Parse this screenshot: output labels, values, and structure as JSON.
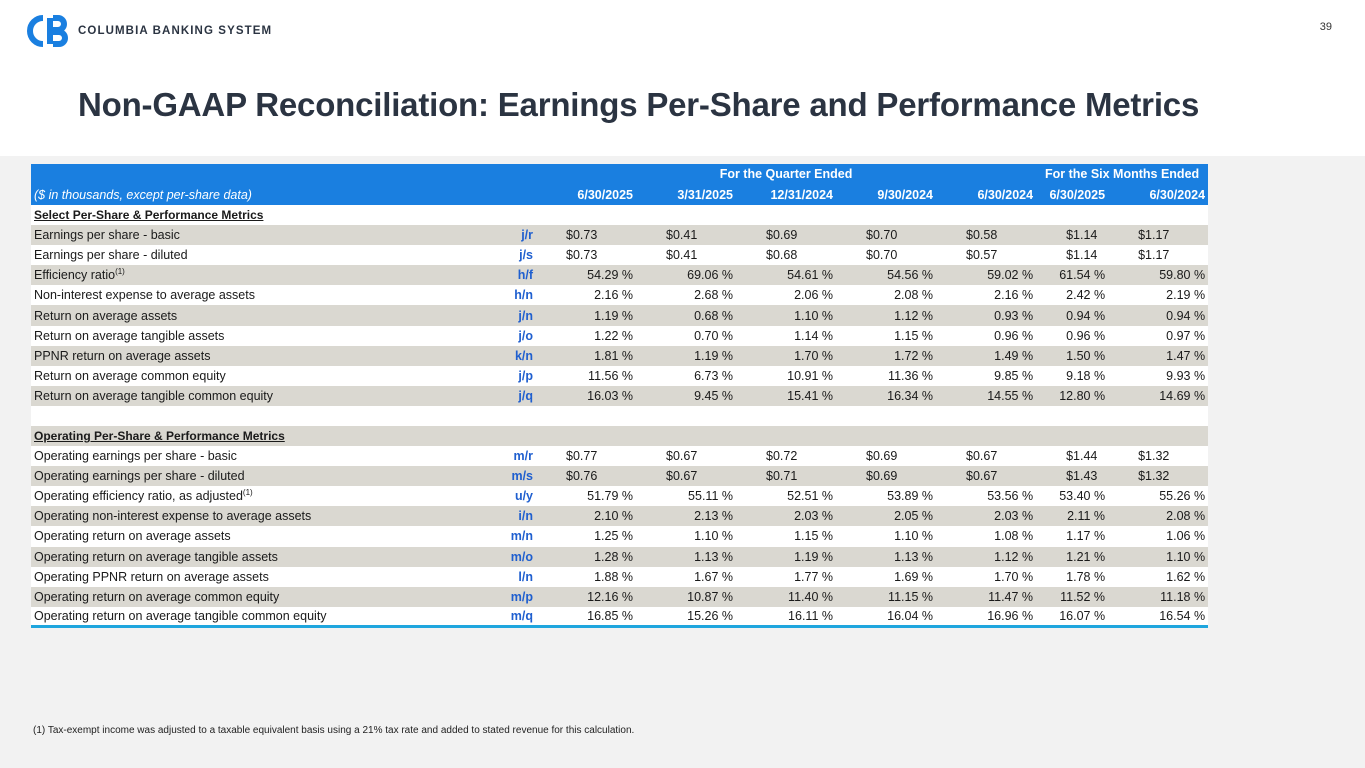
{
  "header": {
    "company": "COLUMBIA BANKING SYSTEM",
    "page_number": "39",
    "brand_color": "#1a7fe0",
    "logo_icon": "cb-logo-icon"
  },
  "title": "Non-GAAP Reconciliation: Earnings Per-Share and Performance Metrics",
  "table": {
    "group_quarter": "For the Quarter Ended",
    "group_six_months": "For the Six Months Ended",
    "units_label": "($ in thousands, except per-share data)",
    "columns": [
      "6/30/2025",
      "3/31/2025",
      "12/31/2024",
      "9/30/2024",
      "6/30/2024",
      "6/30/2025",
      "6/30/2024"
    ],
    "section1": {
      "title": "Select Per-Share & Performance Metrics",
      "rows": [
        {
          "label": "Earnings per share - basic",
          "sup": "",
          "code": "j/r",
          "values": [
            "$0.73",
            "$0.41",
            "$0.69",
            "$0.70",
            "$0.58",
            "$1.14",
            "$1.17"
          ]
        },
        {
          "label": "Earnings per share - diluted",
          "sup": "",
          "code": "j/s",
          "values": [
            "$0.73",
            "$0.41",
            "$0.68",
            "$0.70",
            "$0.57",
            "$1.14",
            "$1.17"
          ]
        },
        {
          "label": "Efficiency ratio",
          "sup": "(1)",
          "code": "h/f",
          "values": [
            "54.29 %",
            "69.06 %",
            "54.61 %",
            "54.56 %",
            "59.02 %",
            "61.54 %",
            "59.80 %"
          ]
        },
        {
          "label": "Non-interest expense to average assets",
          "sup": "",
          "code": "h/n",
          "values": [
            "2.16 %",
            "2.68 %",
            "2.06 %",
            "2.08 %",
            "2.16 %",
            "2.42 %",
            "2.19 %"
          ]
        },
        {
          "label": "Return on average assets",
          "sup": "",
          "code": "j/n",
          "values": [
            "1.19 %",
            "0.68 %",
            "1.10 %",
            "1.12 %",
            "0.93 %",
            "0.94 %",
            "0.94 %"
          ]
        },
        {
          "label": "Return on average tangible assets",
          "sup": "",
          "code": "j/o",
          "values": [
            "1.22 %",
            "0.70 %",
            "1.14 %",
            "1.15 %",
            "0.96 %",
            "0.96 %",
            "0.97 %"
          ]
        },
        {
          "label": "PPNR return on average assets",
          "sup": "",
          "code": "k/n",
          "values": [
            "1.81 %",
            "1.19 %",
            "1.70 %",
            "1.72 %",
            "1.49 %",
            "1.50 %",
            "1.47 %"
          ]
        },
        {
          "label": "Return on average common equity",
          "sup": "",
          "code": "j/p",
          "values": [
            "11.56 %",
            "6.73 %",
            "10.91 %",
            "11.36 %",
            "9.85 %",
            "9.18 %",
            "9.93 %"
          ]
        },
        {
          "label": "Return on average tangible common equity",
          "sup": "",
          "code": "j/q",
          "values": [
            "16.03 %",
            "9.45 %",
            "15.41 %",
            "16.34 %",
            "14.55 %",
            "12.80 %",
            "14.69 %"
          ]
        }
      ]
    },
    "section2": {
      "title": "Operating Per-Share & Performance Metrics",
      "rows": [
        {
          "label": "Operating earnings per share - basic",
          "sup": "",
          "code": "m/r",
          "values": [
            "$0.77",
            "$0.67",
            "$0.72",
            "$0.69",
            "$0.67",
            "$1.44",
            "$1.32"
          ]
        },
        {
          "label": "Operating earnings per share - diluted",
          "sup": "",
          "code": "m/s",
          "values": [
            "$0.76",
            "$0.67",
            "$0.71",
            "$0.69",
            "$0.67",
            "$1.43",
            "$1.32"
          ]
        },
        {
          "label": "Operating efficiency ratio, as adjusted",
          "sup": "(1)",
          "code": "u/y",
          "values": [
            "51.79 %",
            "55.11 %",
            "52.51 %",
            "53.89 %",
            "53.56 %",
            "53.40 %",
            "55.26 %"
          ]
        },
        {
          "label": "Operating non-interest expense to average assets",
          "sup": "",
          "code": "i/n",
          "values": [
            "2.10 %",
            "2.13 %",
            "2.03 %",
            "2.05 %",
            "2.03 %",
            "2.11 %",
            "2.08 %"
          ]
        },
        {
          "label": "Operating return on average assets",
          "sup": "",
          "code": "m/n",
          "values": [
            "1.25 %",
            "1.10 %",
            "1.15 %",
            "1.10 %",
            "1.08 %",
            "1.17 %",
            "1.06 %"
          ]
        },
        {
          "label": "Operating return on average tangible assets",
          "sup": "",
          "code": "m/o",
          "values": [
            "1.28 %",
            "1.13 %",
            "1.19 %",
            "1.13 %",
            "1.12 %",
            "1.21 %",
            "1.10 %"
          ]
        },
        {
          "label": "Operating PPNR return on average assets",
          "sup": "",
          "code": "l/n",
          "values": [
            "1.88 %",
            "1.67 %",
            "1.77 %",
            "1.69 %",
            "1.70 %",
            "1.78 %",
            "1.62 %"
          ]
        },
        {
          "label": "Operating return on average common equity",
          "sup": "",
          "code": "m/p",
          "values": [
            "12.16 %",
            "10.87 %",
            "11.40 %",
            "11.15 %",
            "11.47 %",
            "11.52 %",
            "11.18 %"
          ]
        },
        {
          "label": "Operating return on average tangible common equity",
          "sup": "",
          "code": "m/q",
          "values": [
            "16.85 %",
            "15.26 %",
            "16.11 %",
            "16.04 %",
            "16.96 %",
            "16.07 %",
            "16.54 %"
          ]
        }
      ]
    }
  },
  "footnote": "(1)   Tax-exempt income was adjusted to a taxable equivalent basis using a 21% tax rate and added to stated revenue for this calculation."
}
